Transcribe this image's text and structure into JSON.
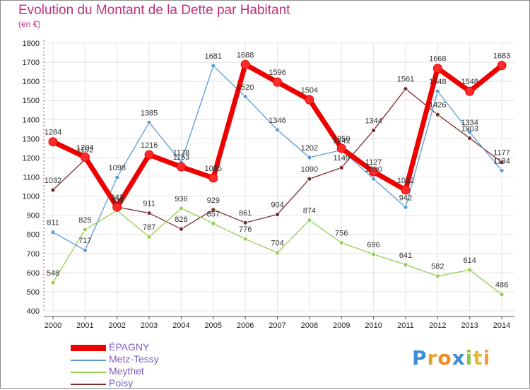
{
  "title": "Evolution du Montant de la Dette par Habitant",
  "unit_label": "(en €)",
  "logo_text": "Proxiti",
  "chart_data": {
    "type": "line",
    "title": "Evolution du Montant de la Dette par Habitant",
    "ylabel": "(en €)",
    "xlabel": "",
    "ylim": [
      400,
      1800
    ],
    "yticks": [
      400,
      500,
      600,
      700,
      800,
      900,
      1000,
      1100,
      1200,
      1300,
      1400,
      1500,
      1600,
      1700,
      1800
    ],
    "categories": [
      "2000",
      "2001",
      "2002",
      "2003",
      "2004",
      "2005",
      "2006",
      "2007",
      "2008",
      "2009",
      "2010",
      "2011",
      "2012",
      "2013",
      "2014"
    ],
    "series": [
      {
        "name": "ÉPAGNY",
        "color": "#ee0000",
        "values": [
          1284,
          1204,
          943,
          1216,
          1153,
          1095,
          1688,
          1596,
          1504,
          1250,
          1127,
          1032,
          1668,
          1548,
          1683
        ]
      },
      {
        "name": "Metz-Tessy",
        "color": "#5b9bd5",
        "values": [
          811,
          717,
          1098,
          1385,
          1178,
          1681,
          1520,
          1346,
          1202,
          1241,
          1090,
          942,
          1548,
          1334,
          1134
        ]
      },
      {
        "name": "Meythet",
        "color": "#92d050",
        "values": [
          548,
          825,
          925,
          787,
          936,
          857,
          776,
          704,
          874,
          756,
          696,
          641,
          582,
          614,
          486
        ]
      },
      {
        "name": "Poisy",
        "color": "#7b2c2c",
        "values": [
          1032,
          1192,
          943,
          911,
          828,
          929,
          861,
          904,
          1090,
          1149,
          1344,
          1561,
          1426,
          1303,
          1177
        ]
      }
    ]
  }
}
